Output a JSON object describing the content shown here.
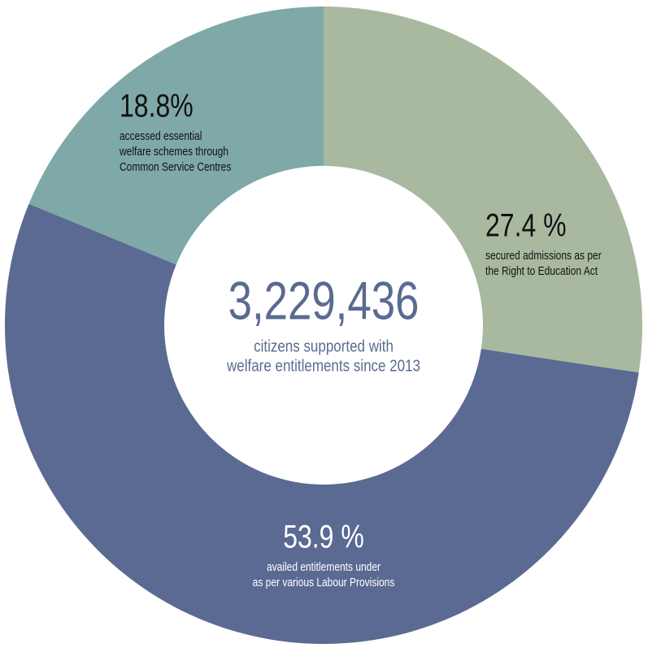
{
  "chart_data": {
    "type": "donut",
    "values": [
      27.4,
      53.9,
      18.8
    ],
    "value_labels": [
      "27.4 %",
      "53.9 %",
      "18.8%"
    ],
    "descriptions": [
      [
        "secured admissions as per",
        "the Right to Education Act"
      ],
      [
        "availed entitlements under",
        "as per various Labour Provisions"
      ],
      [
        "accessed essential",
        "welfare schemes through",
        "Common Service Centres"
      ]
    ],
    "colors": [
      "#a8b9a0",
      "#5a6a92",
      "#7fa8a8"
    ],
    "center_value": "3,229,436",
    "center_text": [
      "citizens supported with",
      "welfare entitlements since 2013"
    ]
  }
}
